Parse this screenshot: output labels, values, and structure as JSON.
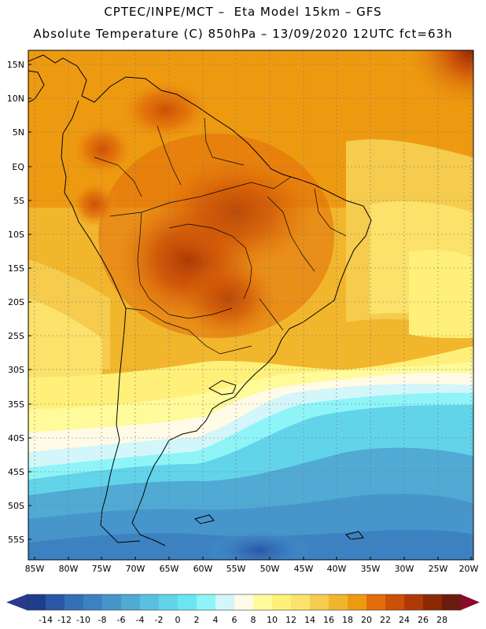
{
  "header": {
    "line1": "CPTEC/INPE/MCT –  Eta Model 15km – GFS",
    "line2": "Absolute Temperature (C) 850hPa – 13/09/2020 12UTC fct=63h"
  },
  "axes": {
    "lat_labels": [
      "15N",
      "10N",
      "5N",
      "EQ",
      "5S",
      "10S",
      "15S",
      "20S",
      "25S",
      "30S",
      "35S",
      "40S",
      "45S",
      "50S",
      "55S"
    ],
    "lon_labels": [
      "85W",
      "80W",
      "75W",
      "70W",
      "65W",
      "60W",
      "55W",
      "50W",
      "45W",
      "40W",
      "35W",
      "30W",
      "25W",
      "20W"
    ]
  },
  "legend": {
    "tick_labels": [
      "-14",
      "-12",
      "-10",
      "-8",
      "-6",
      "-4",
      "-2",
      "0",
      "2",
      "4",
      "6",
      "8",
      "10",
      "12",
      "14",
      "16",
      "18",
      "20",
      "22",
      "24",
      "26",
      "28"
    ],
    "colors": [
      "#203c8c",
      "#2a56a6",
      "#3470b8",
      "#3c82c2",
      "#4696cc",
      "#50aad4",
      "#5ac0e0",
      "#62d4ea",
      "#6ae6f2",
      "#8ef4f8",
      "#d2f6fa",
      "#fffbe6",
      "#fffa9a",
      "#fff07a",
      "#fce26a",
      "#f6cc4e",
      "#f2b62c",
      "#ee9a10",
      "#e26e0a",
      "#cc5006",
      "#b03a06",
      "#8c2804",
      "#6c1c0c"
    ],
    "under_color": "#2a3a8c",
    "over_color": "#8a0a2a"
  }
}
